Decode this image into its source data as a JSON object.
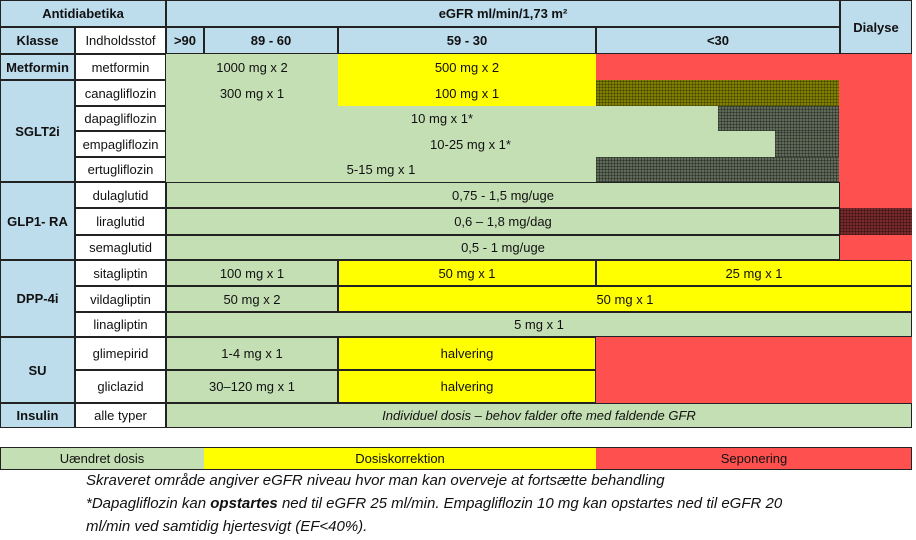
{
  "header": {
    "title": "Antidiabetika",
    "egfr": "eGFR ml/min/1,73 m²",
    "klasse": "Klasse",
    "indhold": "Indholdsstof",
    "cols": [
      ">90",
      "89 - 60",
      "59 - 30",
      "<30",
      "Dialyse"
    ]
  },
  "colors": {
    "unchanged": "#c4dfb4",
    "correction": "#ffff00",
    "discontinue": "#ff5050",
    "header": "#bddcec"
  },
  "classes": [
    "Metformin",
    "SGLT2i",
    "GLP1- RA",
    "DPP-4i",
    "SU",
    "Insulin"
  ],
  "drugs": {
    "metformin": {
      "name": "metformin",
      "doses": [
        "1000 mg x 2",
        "500 mg x 2"
      ]
    },
    "canagliflozin": {
      "name": "canagliflozin",
      "doses": [
        "300 mg x 1",
        "100 mg x 1"
      ]
    },
    "dapagliflozin": {
      "name": "dapagliflozin",
      "doses": [
        "10 mg x 1*"
      ]
    },
    "empagliflozin": {
      "name": "empagliflozin",
      "doses": [
        "10-25 mg x 1*"
      ]
    },
    "ertugliflozin": {
      "name": "ertugliflozin",
      "doses": [
        "5-15 mg x 1"
      ]
    },
    "dulaglutid": {
      "name": "dulaglutid",
      "doses": [
        "0,75 - 1,5 mg/uge"
      ]
    },
    "liraglutid": {
      "name": "liraglutid",
      "doses": [
        "0,6 – 1,8 mg/dag"
      ]
    },
    "semaglutid": {
      "name": "semaglutid",
      "doses": [
        "0,5 - 1 mg/uge"
      ]
    },
    "sitagliptin": {
      "name": "sitagliptin",
      "doses": [
        "100 mg x 1",
        "50 mg x 1",
        "25 mg x 1"
      ]
    },
    "vildagliptin": {
      "name": "vildagliptin",
      "doses": [
        "50 mg x 2",
        "50 mg x 1"
      ]
    },
    "linagliptin": {
      "name": "linagliptin",
      "doses": [
        "5 mg x 1"
      ]
    },
    "glimepirid": {
      "name": "glimepirid",
      "doses": [
        "1-4 mg x 1",
        "halvering"
      ]
    },
    "gliclazid": {
      "name": "gliclazid",
      "doses": [
        "30–120 mg x 1",
        "halvering"
      ]
    },
    "insulin": {
      "name": "alle typer",
      "doses": [
        "Individuel dosis – behov falder ofte med faldende GFR"
      ]
    }
  },
  "legend": [
    "Uændret dosis",
    "Dosiskorrektion",
    "Seponering"
  ],
  "notes": [
    "Skraveret område angiver eGFR niveau hvor man kan overveje at fortsætte behandling",
    "*Dapagliflozin kan opstartes ned til eGFR 25 ml/min. Empagliflozin 10 mg kan opstartes ned til eGFR 20",
    "ml/min ved samtidig hjertesvigt (EF<40%)."
  ],
  "notes_bold": "opstartes"
}
